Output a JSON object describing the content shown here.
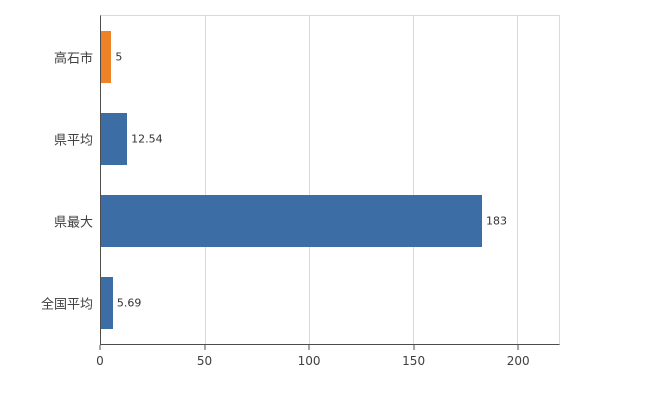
{
  "chart_data": {
    "type": "bar",
    "orientation": "horizontal",
    "title": "",
    "xlabel": "",
    "ylabel": "",
    "categories": [
      "高石市",
      "県平均",
      "県最大",
      "全国平均"
    ],
    "values": [
      5,
      12.54,
      183,
      5.69
    ],
    "value_labels": [
      "5",
      "12.54",
      "183",
      "5.69"
    ],
    "bar_colors": [
      "#ee8227",
      "#3d6da5",
      "#3d6da5",
      "#3d6da5"
    ],
    "x_ticks": [
      0,
      50,
      100,
      150,
      200
    ],
    "xlim": [
      0,
      220
    ],
    "grid": true,
    "legend": "none"
  },
  "colors": {
    "accent_orange": "#ee8227",
    "accent_blue": "#3d6da5",
    "gridline": "#d9d9d9",
    "axis": "#4d4d4d",
    "background": "#ffffff"
  }
}
